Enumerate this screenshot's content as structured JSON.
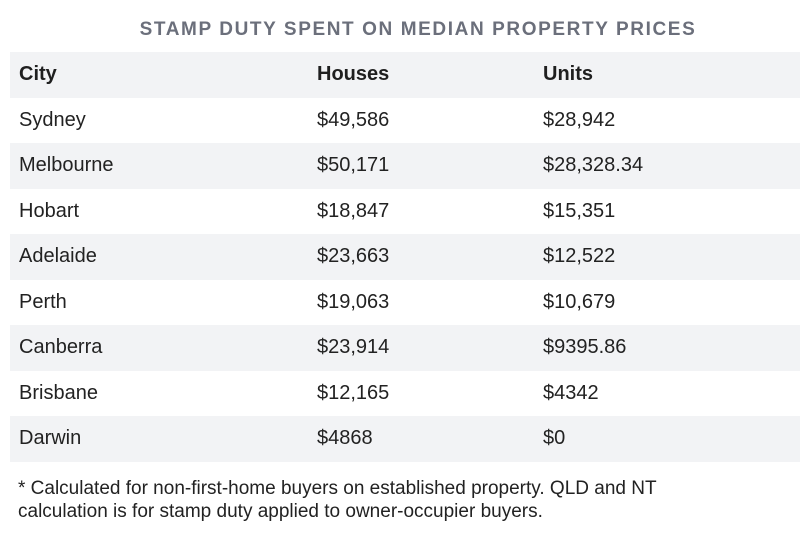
{
  "chart_data": {
    "type": "table",
    "title": "STAMP DUTY SPENT ON MEDIAN PROPERTY PRICES",
    "columns": [
      "City",
      "Houses",
      "Units"
    ],
    "rows": [
      {
        "city": "Sydney",
        "houses": "$49,586",
        "units": "$28,942"
      },
      {
        "city": "Melbourne",
        "houses": "$50,171",
        "units": "$28,328.34"
      },
      {
        "city": "Hobart",
        "houses": "$18,847",
        "units": "$15,351"
      },
      {
        "city": "Adelaide",
        "houses": "$23,663",
        "units": "$12,522"
      },
      {
        "city": "Perth",
        "houses": "$19,063",
        "units": "$10,679"
      },
      {
        "city": "Canberra",
        "houses": "$23,914",
        "units": "$9395.86"
      },
      {
        "city": "Brisbane",
        "houses": "$12,165",
        "units": "$4342"
      },
      {
        "city": "Darwin",
        "houses": "$4868",
        "units": "$0"
      }
    ],
    "footnote": [
      "* Calculated for non-first-home buyers on established property. QLD and NT",
      "calculation is for stamp duty applied to owner-occupier buyers."
    ],
    "colors": {
      "title": "#6b6f7b",
      "row_shade": "#f2f3f5",
      "text": "#222222"
    }
  }
}
